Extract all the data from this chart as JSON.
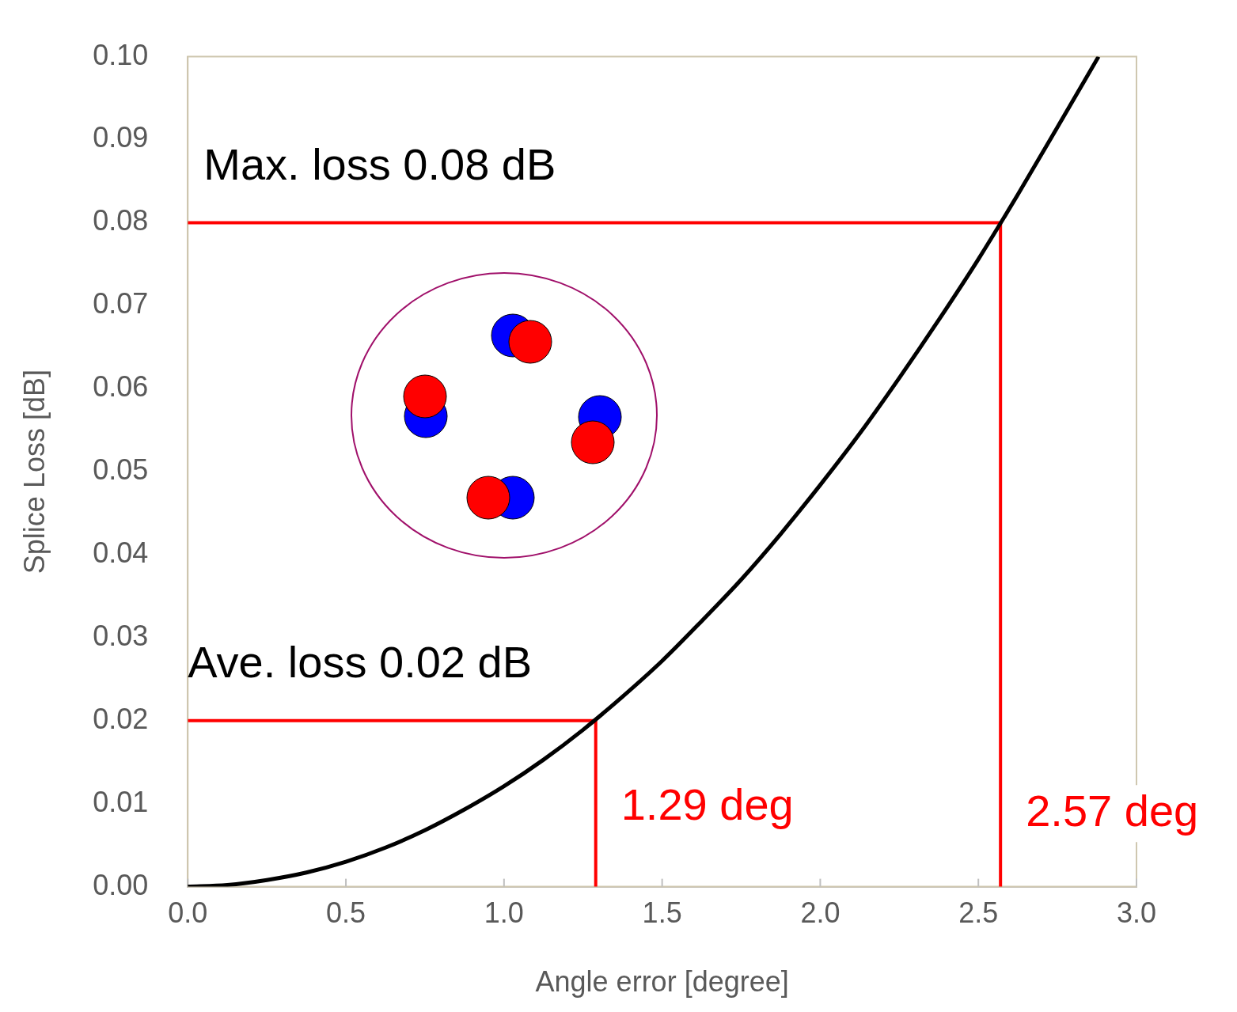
{
  "chart_data": {
    "type": "line",
    "xlabel": "Angle error [degree]",
    "ylabel": "Splice Loss [dB]",
    "xlim": [
      0,
      3
    ],
    "ylim": [
      0,
      0.1
    ],
    "xticks": [
      {
        "value": 0,
        "label": "0.0"
      },
      {
        "value": 0.5,
        "label": "0.5"
      },
      {
        "value": 1,
        "label": "1.0"
      },
      {
        "value": 1.5,
        "label": "1.5"
      },
      {
        "value": 2,
        "label": "2.0"
      },
      {
        "value": 2.5,
        "label": "2.5"
      },
      {
        "value": 3,
        "label": "3.0"
      }
    ],
    "yticks": [
      {
        "value": 0,
        "label": "0.00"
      },
      {
        "value": 0.01,
        "label": "0.01"
      },
      {
        "value": 0.02,
        "label": "0.02"
      },
      {
        "value": 0.03,
        "label": "0.03"
      },
      {
        "value": 0.04,
        "label": "0.04"
      },
      {
        "value": 0.05,
        "label": "0.05"
      },
      {
        "value": 0.06,
        "label": "0.06"
      },
      {
        "value": 0.07,
        "label": "0.07"
      },
      {
        "value": 0.08,
        "label": "0.08"
      },
      {
        "value": 0.09,
        "label": "0.09"
      },
      {
        "value": 0.1,
        "label": "0.10"
      }
    ],
    "marker": "none",
    "series": [
      {
        "color": "#000000",
        "x": [
          0,
          0.125,
          0.25,
          0.375,
          0.5,
          0.625,
          0.75,
          0.875,
          1,
          1.125,
          1.25,
          1.375,
          1.5,
          1.625,
          1.75,
          1.875,
          2,
          2.125,
          2.25,
          2.375,
          2.5,
          2.625,
          2.75,
          2.88
        ],
        "values": [
          0,
          0.0002,
          0.0008,
          0.0017,
          0.003,
          0.0047,
          0.0068,
          0.0093,
          0.0121,
          0.0153,
          0.0189,
          0.0229,
          0.0272,
          0.032,
          0.037,
          0.0425,
          0.0484,
          0.0546,
          0.0613,
          0.0683,
          0.0756,
          0.0834,
          0.0915,
          0.1
        ]
      },
      {
        "color": "#ff0000",
        "x": [
          0,
          2.57,
          2.57
        ],
        "values": [
          0.08,
          0.08,
          0
        ]
      },
      {
        "color": "#ff0000",
        "x": [
          0,
          1.29,
          1.29
        ],
        "values": [
          0.02,
          0.02,
          0
        ]
      }
    ],
    "annotations": [
      "Max. loss 0.08 dB",
      "Ave. loss 0.02 dB",
      {
        "text": "1.29 deg",
        "x": 1.29,
        "y": 0.0095
      },
      {
        "text": "2.57 deg",
        "x": 2.57,
        "y": 0.0088
      }
    ]
  }
}
